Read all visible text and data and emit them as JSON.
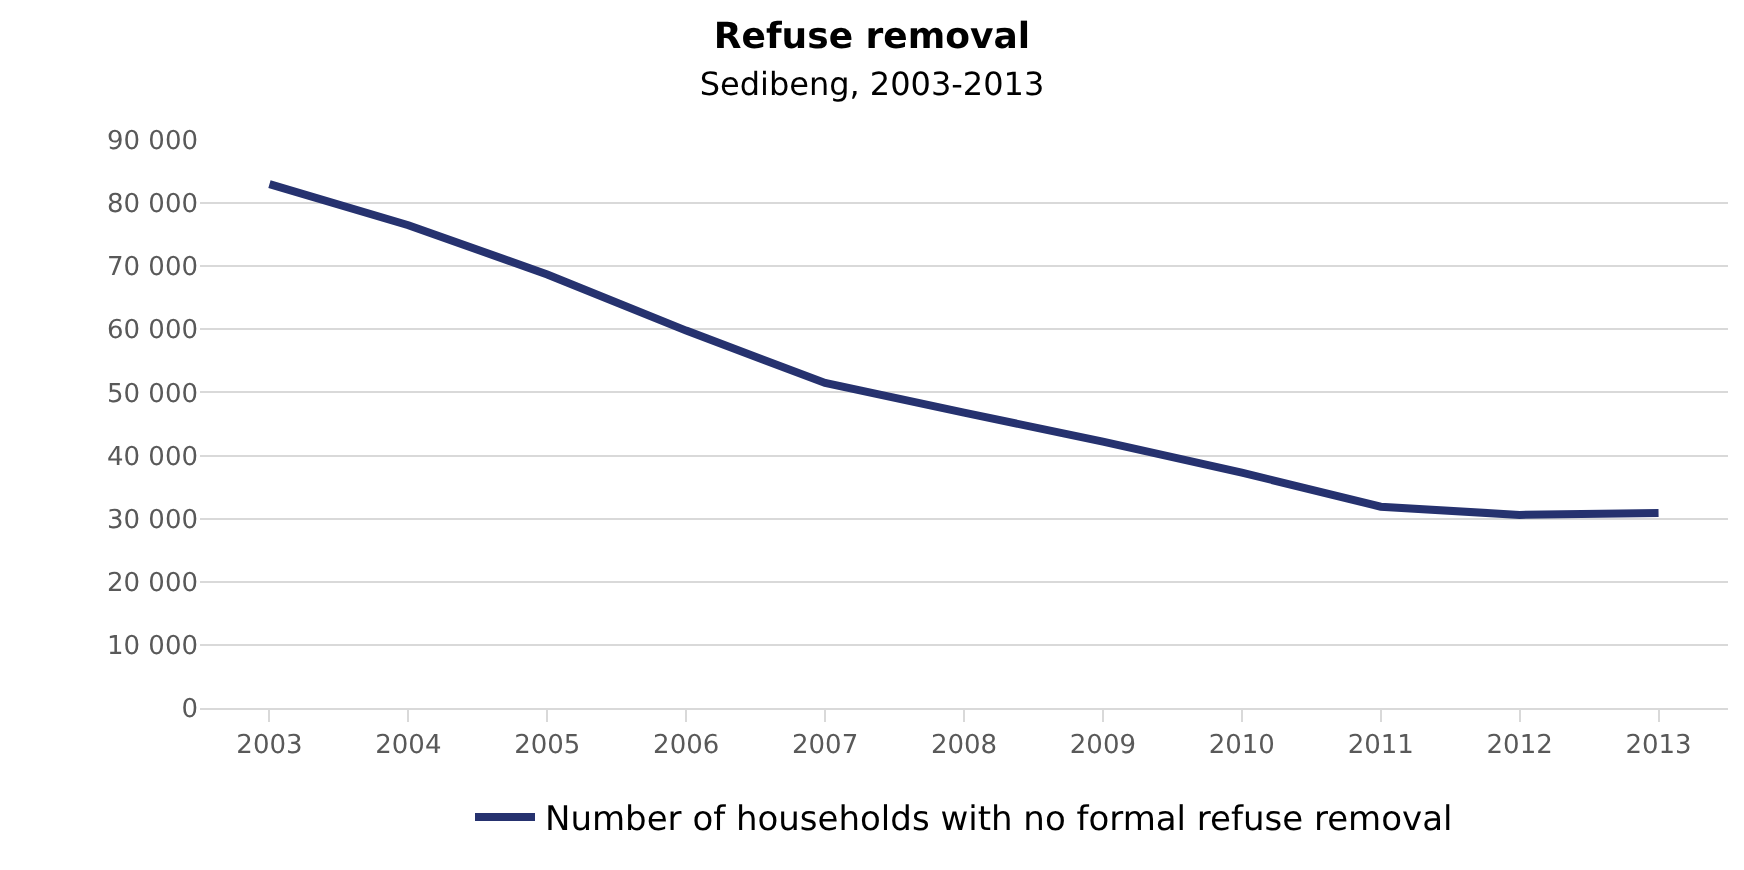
{
  "chart_data": {
    "type": "line",
    "title": "Refuse removal",
    "subtitle": "Sedibeng, 2003-2013",
    "categories": [
      "2003",
      "2004",
      "2005",
      "2006",
      "2007",
      "2008",
      "2009",
      "2010",
      "2011",
      "2012",
      "2013"
    ],
    "series": [
      {
        "name": "Number of households with no formal refuse removal",
        "color": "#26326f",
        "values": [
          83000,
          76500,
          68700,
          59800,
          51500,
          46800,
          42200,
          37300,
          31900,
          30600,
          30900
        ]
      }
    ],
    "ylim": [
      0,
      90000
    ],
    "yticks": [
      {
        "value": 0,
        "label": "0"
      },
      {
        "value": 10000,
        "label": "10 000"
      },
      {
        "value": 20000,
        "label": "20 000"
      },
      {
        "value": 30000,
        "label": "30 000"
      },
      {
        "value": 40000,
        "label": "40 000"
      },
      {
        "value": 50000,
        "label": "50 000"
      },
      {
        "value": 60000,
        "label": "60 000"
      },
      {
        "value": 70000,
        "label": "70 000"
      },
      {
        "value": 80000,
        "label": "80 000"
      },
      {
        "value": 90000,
        "label": "90 000"
      }
    ],
    "grid": "y",
    "legend": "bottom",
    "marker": "none",
    "line_style": "solid"
  }
}
